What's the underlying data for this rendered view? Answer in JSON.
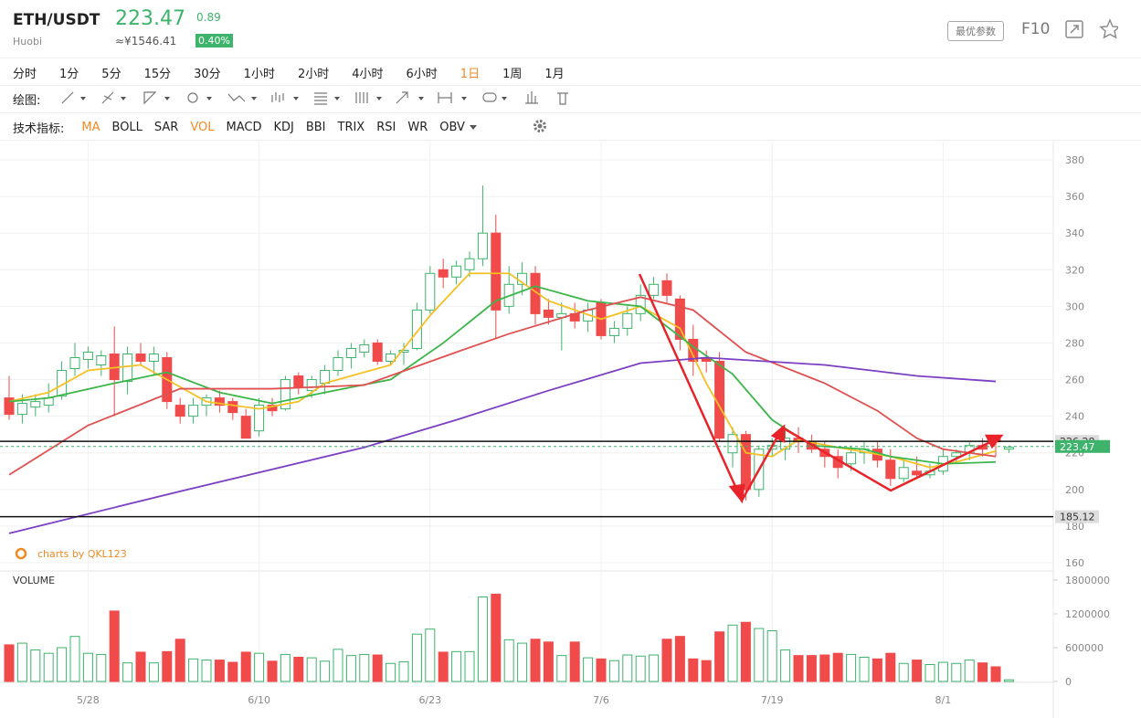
{
  "header": {
    "symbol": "ETH/USDT",
    "exchange": "Huobi",
    "price": "223.47",
    "change": "0.89",
    "cny": "≈¥1546.41",
    "percent": "0.40%",
    "button": "最优参数",
    "f10": "F10"
  },
  "intervals": {
    "items": [
      "分时",
      "1分",
      "5分",
      "15分",
      "30分",
      "1小时",
      "2小时",
      "4小时",
      "6小时",
      "1日",
      "1周",
      "1月"
    ],
    "active": 9
  },
  "drawing": {
    "label": "绘图:"
  },
  "indicators": {
    "label": "技术指标:",
    "items": [
      "MA",
      "BOLL",
      "SAR",
      "VOL",
      "MACD",
      "KDJ",
      "BBI",
      "TRIX",
      "RSI",
      "WR",
      "OBV"
    ],
    "active": [
      0,
      3
    ]
  },
  "chart_data": {
    "type": "candlestick",
    "categories": [
      null,
      null,
      null,
      null,
      null,
      null,
      "5/28",
      null,
      null,
      null,
      null,
      null,
      null,
      null,
      null,
      null,
      null,
      null,
      null,
      "6/10",
      null,
      null,
      null,
      null,
      null,
      null,
      null,
      null,
      null,
      null,
      null,
      null,
      "6/23",
      null,
      null,
      null,
      null,
      null,
      null,
      null,
      null,
      null,
      null,
      null,
      null,
      "7/6",
      null,
      null,
      null,
      null,
      null,
      null,
      null,
      null,
      null,
      null,
      null,
      null,
      "7/19",
      null,
      null,
      null,
      null,
      null,
      null,
      null,
      null,
      null,
      null,
      null,
      null,
      "8/1",
      null,
      null,
      null,
      null,
      null
    ],
    "open": [
      250,
      241,
      245,
      246,
      251,
      266,
      271,
      268,
      274,
      259,
      274,
      270,
      272,
      246,
      240,
      246,
      250,
      248,
      240,
      232,
      246,
      244,
      262,
      254,
      258,
      265,
      272,
      275,
      280,
      270,
      275,
      277,
      298,
      320,
      316,
      320,
      326,
      340,
      300,
      312,
      318,
      298,
      294,
      296,
      292,
      302,
      284,
      288,
      296,
      306,
      314,
      304,
      282,
      272,
      270,
      220,
      230,
      200,
      222,
      222,
      228,
      226,
      222,
      218,
      214,
      220,
      222,
      216,
      206,
      210,
      208,
      210,
      218,
      220,
      224,
      228,
      222
    ],
    "high": [
      262,
      252,
      252,
      258,
      270,
      280,
      278,
      276,
      289,
      278,
      280,
      278,
      275,
      250,
      250,
      252,
      254,
      250,
      244,
      250,
      250,
      262,
      264,
      262,
      268,
      276,
      280,
      282,
      282,
      276,
      280,
      302,
      322,
      326,
      325,
      330,
      366,
      350,
      322,
      324,
      322,
      304,
      302,
      302,
      302,
      304,
      292,
      300,
      312,
      316,
      318,
      306,
      290,
      276,
      275,
      234,
      232,
      224,
      228,
      232,
      234,
      230,
      226,
      222,
      224,
      226,
      226,
      222,
      216,
      218,
      214,
      222,
      222,
      226,
      228,
      228,
      224
    ],
    "low": [
      238,
      236,
      240,
      242,
      249,
      262,
      266,
      262,
      240,
      252,
      268,
      262,
      244,
      236,
      236,
      240,
      242,
      238,
      228,
      229,
      240,
      243,
      252,
      250,
      252,
      262,
      266,
      272,
      268,
      268,
      268,
      276,
      296,
      310,
      312,
      316,
      322,
      282,
      296,
      306,
      290,
      290,
      276,
      288,
      286,
      282,
      280,
      284,
      292,
      304,
      302,
      276,
      262,
      264,
      226,
      212,
      194,
      196,
      218,
      216,
      220,
      220,
      212,
      206,
      210,
      214,
      212,
      202,
      204,
      206,
      206,
      208,
      214,
      216,
      218,
      218,
      220
    ],
    "close": [
      241,
      247,
      248,
      250,
      265,
      272,
      275,
      273,
      260,
      274,
      270,
      274,
      248,
      240,
      246,
      250,
      246,
      242,
      228,
      246,
      243,
      260,
      256,
      260,
      265,
      272,
      277,
      279,
      270,
      274,
      276,
      298,
      318,
      316,
      322,
      326,
      340,
      298,
      312,
      318,
      296,
      294,
      296,
      292,
      298,
      284,
      288,
      296,
      306,
      312,
      306,
      282,
      270,
      270,
      228,
      230,
      200,
      222,
      224,
      228,
      226,
      222,
      218,
      212,
      220,
      222,
      216,
      206,
      212,
      208,
      210,
      218,
      220,
      224,
      222,
      226,
      223
    ],
    "volume": [
      650000,
      680000,
      560000,
      500000,
      600000,
      800000,
      500000,
      480000,
      1250000,
      330000,
      520000,
      330000,
      530000,
      750000,
      400000,
      380000,
      380000,
      340000,
      520000,
      500000,
      360000,
      480000,
      430000,
      420000,
      360000,
      570000,
      460000,
      480000,
      470000,
      320000,
      350000,
      840000,
      930000,
      520000,
      530000,
      530000,
      1500000,
      1550000,
      740000,
      680000,
      750000,
      700000,
      460000,
      700000,
      420000,
      400000,
      370000,
      470000,
      450000,
      470000,
      750000,
      800000,
      400000,
      370000,
      880000,
      1000000,
      1050000,
      940000,
      900000,
      560000,
      460000,
      460000,
      470000,
      500000,
      480000,
      430000,
      400000,
      500000,
      320000,
      380000,
      300000,
      340000,
      320000,
      380000,
      330000,
      260000,
      30000
    ],
    "up_color": "#3db36b",
    "down_color": "#f04a4a",
    "ma": [
      {
        "color": "#f5c023",
        "x": [
          0,
          3,
          6,
          10,
          15,
          19,
          22,
          24,
          29,
          32,
          35,
          38,
          41,
          45,
          48,
          51,
          53,
          56,
          58,
          60,
          63,
          67,
          70,
          72,
          75
        ],
        "values": [
          248,
          253,
          265,
          268,
          248,
          244,
          248,
          258,
          268,
          295,
          318,
          318,
          303,
          293,
          300,
          288,
          258,
          220,
          218,
          227,
          223,
          218,
          212,
          215,
          221
        ]
      },
      {
        "color": "#3cb54a",
        "x": [
          0,
          3,
          8,
          12,
          16,
          20,
          24,
          29,
          33,
          37,
          40,
          44,
          48,
          52,
          55,
          58,
          61,
          65,
          67,
          71,
          75
        ],
        "values": [
          248,
          250,
          258,
          264,
          253,
          247,
          253,
          260,
          280,
          303,
          311,
          303,
          300,
          278,
          263,
          238,
          224,
          222,
          218,
          214,
          215
        ]
      },
      {
        "color": "#e05050",
        "x": [
          0,
          6,
          13,
          20,
          27,
          34,
          38,
          44,
          48,
          52,
          56,
          62,
          66,
          69,
          71,
          75
        ],
        "values": [
          208,
          235,
          255,
          255,
          257,
          275,
          285,
          298,
          305,
          298,
          275,
          258,
          243,
          228,
          222,
          218
        ]
      },
      {
        "color": "#7b3fc4",
        "x": [
          0,
          13,
          27,
          34,
          41,
          48,
          53,
          62,
          69,
          75
        ],
        "values": [
          176,
          199,
          223,
          238,
          254,
          269,
          272,
          268,
          262,
          259
        ]
      }
    ],
    "ylim": [
      160,
      380
    ],
    "yticks": [
      160,
      180,
      200,
      220,
      240,
      260,
      280,
      300,
      320,
      340,
      360,
      380
    ],
    "volume_label": "VOLUME",
    "vlim": [
      0,
      1800000
    ],
    "vticks": [
      0,
      600000,
      1200000,
      1800000
    ],
    "levels": [
      226.28,
      185.12
    ],
    "last_price": 223.47,
    "watermark": "charts by QKL123",
    "grid": true
  }
}
